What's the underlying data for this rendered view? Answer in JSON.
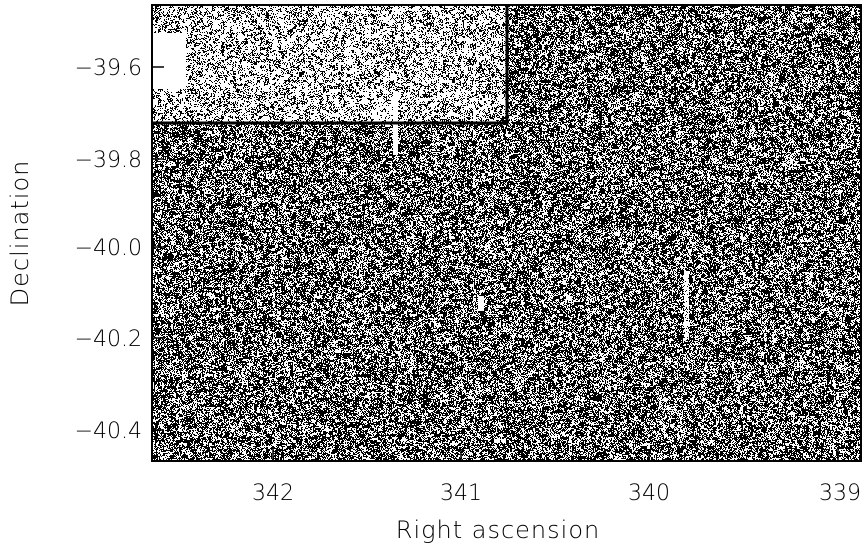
{
  "figure": {
    "xlabel": "Right ascension",
    "ylabel": "Declination",
    "x_ticks": [
      "342",
      "341",
      "340",
      "339"
    ],
    "y_ticks": [
      "−39.6",
      "−39.8",
      "−40.0",
      "−40.2",
      "−40.4"
    ]
  },
  "image": {
    "kind": "binary noise sky map",
    "colors": {
      "foreground": "#000000",
      "background": "#ffffff"
    }
  }
}
